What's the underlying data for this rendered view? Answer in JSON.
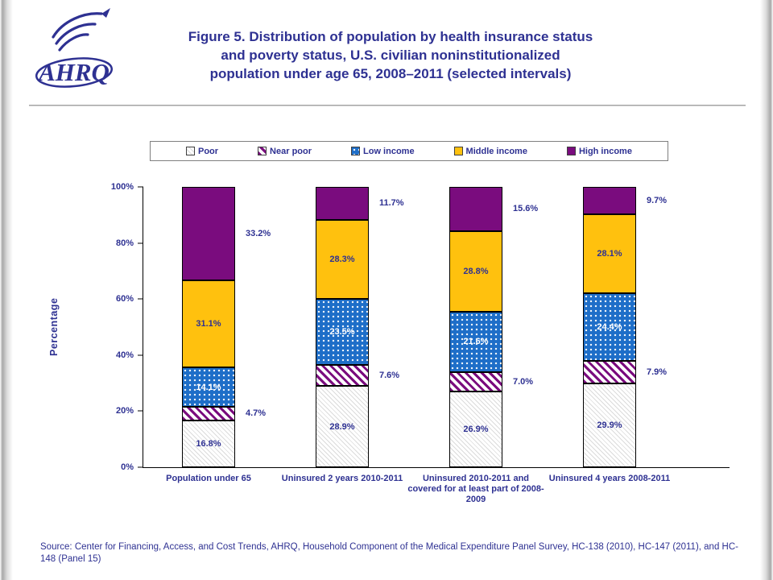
{
  "page": {
    "logo_text": "AHRQ",
    "title_lines": [
      "Figure 5. Distribution of population by health insurance status",
      "and poverty status, U.S. civilian noninstitutionalized",
      "population under age 65, 2008–2011 (selected intervals)"
    ],
    "source": "Source: Center for Financing, Access, and Cost Trends, AHRQ, Household Component of the Medical Expenditure Panel Survey, HC-138 (2010), HC-147 (2011), and HC-148 (Panel 15)"
  },
  "colors": {
    "text_blue": "#2E3192",
    "title_blue": "#2E3192",
    "poor_fill": "#FFFFFF",
    "poor_hatch": "#9A9A9A",
    "near_poor_hatch": "#7A0C7E",
    "low_income_blue": "#1E6EC8",
    "middle_income_gold": "#FFC10E",
    "high_income_purple": "#7A0C7E",
    "axis_color": "#000000"
  },
  "chart_data": {
    "type": "bar",
    "subtype": "stacked-percent",
    "title": "Figure 5. Distribution of population by health insurance status and poverty status, U.S. civilian noninstitutionalized population under age 65, 2008–2011 (selected intervals)",
    "xlabel": "",
    "ylabel": "Percentage",
    "ylim": [
      0,
      100
    ],
    "yticks": [
      "0%",
      "20%",
      "40%",
      "60%",
      "80%",
      "100%"
    ],
    "grid": false,
    "legend_position": "top",
    "categories": [
      "Population under 65",
      "Uninsured 2 years 2010-2011",
      "Uninsured 2010-2011 and covered for at least part of 2008-2009",
      "Uninsured 4 years 2008-2011"
    ],
    "series": [
      {
        "name": "Poor",
        "key": "poor",
        "values": [
          16.8,
          28.9,
          26.9,
          29.9
        ],
        "labels": [
          "16.8%",
          "28.9%",
          "26.9%",
          "29.9%"
        ],
        "label_pos": "inside",
        "label_color": "dark"
      },
      {
        "name": "Near poor",
        "key": "near-poor",
        "values": [
          4.7,
          7.6,
          7.0,
          7.9
        ],
        "labels": [
          "4.7%",
          "7.6%",
          "7.0%",
          "7.9%"
        ],
        "label_pos": "outside",
        "label_color": "dark"
      },
      {
        "name": "Low income",
        "key": "low-income",
        "values": [
          14.1,
          23.5,
          21.6,
          24.4
        ],
        "labels": [
          "14.1%",
          "23.5%",
          "21.6%",
          "24.4%"
        ],
        "label_pos": "inside",
        "label_color": "light"
      },
      {
        "name": "Middle income",
        "key": "middle-income",
        "values": [
          31.1,
          28.3,
          28.8,
          28.1
        ],
        "labels": [
          "31.1%",
          "28.3%",
          "28.8%",
          "28.1%"
        ],
        "label_pos": "inside",
        "label_color": "dark"
      },
      {
        "name": "High income",
        "key": "high-income",
        "values": [
          33.2,
          11.7,
          15.6,
          9.7
        ],
        "labels": [
          "33.2%",
          "11.7%",
          "15.6%",
          "9.7%"
        ],
        "label_pos": "outside",
        "label_color": "dark"
      }
    ]
  }
}
